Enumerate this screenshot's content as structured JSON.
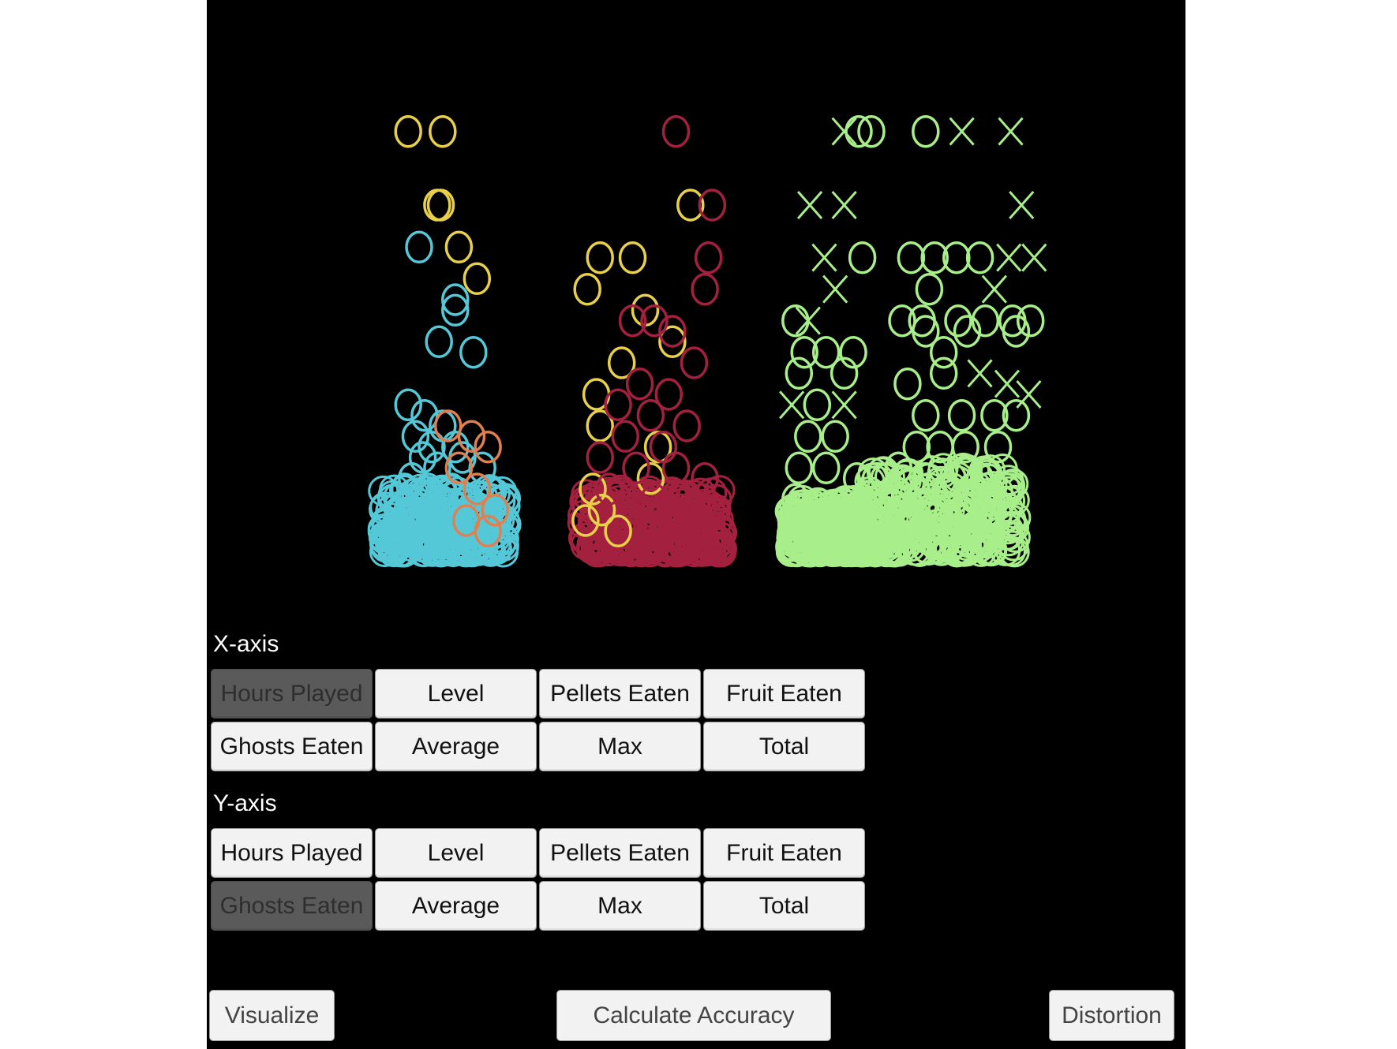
{
  "x_axis": {
    "label": "X-axis",
    "buttons": [
      "Hours Played",
      "Level",
      "Pellets Eaten",
      "Fruit Eaten",
      "Ghosts Eaten",
      "Average",
      "Max",
      "Total"
    ],
    "selected": "Hours Played"
  },
  "y_axis": {
    "label": "Y-axis",
    "buttons": [
      "Hours Played",
      "Level",
      "Pellets Eaten",
      "Fruit Eaten",
      "Ghosts Eaten",
      "Average",
      "Max",
      "Total"
    ],
    "selected": "Ghosts Eaten"
  },
  "actions": {
    "visualize": "Visualize",
    "calculate_accuracy": "Calculate Accuracy",
    "distortion": "Distortion"
  },
  "colors": {
    "background": "#000000",
    "cyan": "#55c8d8",
    "orange": "#e08050",
    "yellow": "#e8d04a",
    "crimson": "#a3213f",
    "lightgreen": "#a8ee8a"
  },
  "chart_data": {
    "type": "scatter",
    "title": "",
    "xlabel": "",
    "ylabel": "",
    "markers": [
      "circle",
      "x"
    ],
    "clusters": [
      {
        "color": "cyan",
        "points": [
          [
            0.2,
            29,
            "o"
          ],
          [
            0.4,
            24,
            "o"
          ],
          [
            0.4,
            23,
            "o"
          ],
          [
            0.31,
            20,
            "o"
          ],
          [
            0.5,
            19,
            "o"
          ],
          [
            0.14,
            14,
            "o"
          ],
          [
            0.23,
            13,
            "o"
          ],
          [
            0.33,
            12,
            "o"
          ],
          [
            0.18,
            11,
            "o"
          ],
          [
            0.27,
            10,
            "o"
          ],
          [
            0.4,
            10,
            "o"
          ],
          [
            0.22,
            9,
            "o"
          ],
          [
            0.44,
            9,
            "o"
          ],
          [
            0.3,
            8,
            "o"
          ],
          [
            0.16,
            7,
            "o"
          ],
          [
            0.55,
            8,
            "o"
          ],
          [
            0.12,
            6,
            "o"
          ],
          [
            0.25,
            6,
            "o"
          ],
          [
            0.38,
            6,
            "o"
          ],
          [
            0.48,
            5,
            "o"
          ],
          [
            0.6,
            5,
            "o"
          ],
          [
            0.2,
            0,
            "x"
          ]
        ]
      },
      {
        "color": "orange",
        "points": [
          [
            0.36,
            12,
            "o"
          ],
          [
            0.49,
            11,
            "o"
          ],
          [
            0.58,
            10,
            "o"
          ],
          [
            0.42,
            8,
            "o"
          ],
          [
            0.52,
            6,
            "o"
          ],
          [
            0.62,
            4,
            "o"
          ],
          [
            0.46,
            3,
            "o"
          ],
          [
            0.58,
            2,
            "o"
          ]
        ]
      },
      {
        "color": "yellow",
        "points": [
          [
            0.14,
            40,
            "o"
          ],
          [
            0.33,
            40,
            "o"
          ],
          [
            0.3,
            33,
            "o"
          ],
          [
            0.32,
            33,
            "o"
          ],
          [
            0.42,
            29,
            "o"
          ],
          [
            0.52,
            26,
            "o"
          ],
          [
            1.7,
            33,
            "o"
          ],
          [
            1.2,
            28,
            "o"
          ],
          [
            1.38,
            28,
            "o"
          ],
          [
            1.13,
            25,
            "o"
          ],
          [
            1.45,
            23,
            "o"
          ],
          [
            1.6,
            20,
            "o"
          ],
          [
            1.32,
            18,
            "o"
          ],
          [
            1.18,
            15,
            "o"
          ],
          [
            1.2,
            12,
            "o"
          ],
          [
            1.52,
            10,
            "o"
          ],
          [
            1.48,
            7,
            "o"
          ],
          [
            1.16,
            6,
            "o"
          ],
          [
            1.21,
            4,
            "o"
          ],
          [
            1.12,
            3,
            "o"
          ],
          [
            1.3,
            2,
            "o"
          ]
        ]
      },
      {
        "color": "crimson",
        "points": [
          [
            1.62,
            40,
            "o"
          ],
          [
            1.82,
            33,
            "o"
          ],
          [
            1.8,
            28,
            "o"
          ],
          [
            1.78,
            25,
            "o"
          ],
          [
            1.38,
            22,
            "o"
          ],
          [
            1.5,
            22,
            "o"
          ],
          [
            1.6,
            21,
            "o"
          ],
          [
            1.72,
            18,
            "o"
          ],
          [
            1.42,
            16,
            "o"
          ],
          [
            1.58,
            15,
            "o"
          ],
          [
            1.3,
            14,
            "o"
          ],
          [
            1.48,
            13,
            "o"
          ],
          [
            1.68,
            12,
            "o"
          ],
          [
            1.34,
            11,
            "o"
          ],
          [
            1.55,
            10,
            "o"
          ],
          [
            1.2,
            9,
            "o"
          ],
          [
            1.4,
            8,
            "o"
          ],
          [
            1.62,
            8,
            "o"
          ],
          [
            1.78,
            7,
            "o"
          ],
          [
            1.25,
            6,
            "o"
          ],
          [
            1.5,
            5,
            "o"
          ],
          [
            1.7,
            4,
            "o"
          ]
        ]
      },
      {
        "color": "lightgreen",
        "points": [
          [
            2.55,
            40,
            "x"
          ],
          [
            2.63,
            40,
            "o"
          ],
          [
            2.7,
            40,
            "o"
          ],
          [
            3.0,
            40,
            "o"
          ],
          [
            3.2,
            40,
            "x"
          ],
          [
            3.47,
            40,
            "x"
          ],
          [
            2.36,
            33,
            "x"
          ],
          [
            2.55,
            33,
            "x"
          ],
          [
            3.53,
            33,
            "x"
          ],
          [
            2.44,
            28,
            "x"
          ],
          [
            2.65,
            28,
            "o"
          ],
          [
            2.92,
            28,
            "o"
          ],
          [
            3.05,
            28,
            "o"
          ],
          [
            3.17,
            28,
            "o"
          ],
          [
            3.3,
            28,
            "o"
          ],
          [
            3.46,
            28,
            "x"
          ],
          [
            3.6,
            28,
            "x"
          ],
          [
            2.5,
            25,
            "x"
          ],
          [
            3.02,
            25,
            "o"
          ],
          [
            3.38,
            25,
            "x"
          ],
          [
            2.28,
            22,
            "o"
          ],
          [
            2.35,
            22,
            "x"
          ],
          [
            2.87,
            22,
            "o"
          ],
          [
            2.98,
            22,
            "o"
          ],
          [
            3.18,
            22,
            "o"
          ],
          [
            3.33,
            22,
            "o"
          ],
          [
            3.48,
            22,
            "o"
          ],
          [
            3.58,
            22,
            "o"
          ],
          [
            3.0,
            21,
            "o"
          ],
          [
            3.23,
            21,
            "o"
          ],
          [
            3.5,
            21,
            "o"
          ],
          [
            2.33,
            19,
            "o"
          ],
          [
            2.45,
            19,
            "o"
          ],
          [
            2.6,
            19,
            "o"
          ],
          [
            3.1,
            19,
            "o"
          ],
          [
            2.3,
            17,
            "o"
          ],
          [
            2.55,
            17,
            "o"
          ],
          [
            2.9,
            16,
            "o"
          ],
          [
            3.1,
            17,
            "o"
          ],
          [
            3.3,
            17,
            "x"
          ],
          [
            3.45,
            16,
            "x"
          ],
          [
            3.57,
            15,
            "x"
          ],
          [
            2.26,
            14,
            "x"
          ],
          [
            2.4,
            14,
            "o"
          ],
          [
            2.55,
            14,
            "x"
          ],
          [
            3.0,
            13,
            "o"
          ],
          [
            3.2,
            13,
            "o"
          ],
          [
            3.38,
            13,
            "o"
          ],
          [
            3.5,
            13,
            "o"
          ],
          [
            2.35,
            11,
            "o"
          ],
          [
            2.5,
            11,
            "o"
          ],
          [
            2.95,
            10,
            "o"
          ],
          [
            3.08,
            10,
            "o"
          ],
          [
            3.22,
            10,
            "o"
          ],
          [
            3.4,
            10,
            "o"
          ],
          [
            2.3,
            8,
            "o"
          ],
          [
            2.45,
            8,
            "o"
          ],
          [
            2.62,
            7,
            "o"
          ],
          [
            2.85,
            8,
            "o"
          ],
          [
            3.0,
            7,
            "o"
          ],
          [
            3.15,
            7,
            "o"
          ],
          [
            3.3,
            7,
            "o"
          ],
          [
            3.45,
            6,
            "o"
          ],
          [
            2.28,
            5,
            "o"
          ],
          [
            2.42,
            4,
            "o"
          ],
          [
            2.58,
            4,
            "o"
          ],
          [
            2.75,
            5,
            "o"
          ],
          [
            2.9,
            4,
            "o"
          ],
          [
            3.05,
            4,
            "o"
          ],
          [
            3.2,
            3,
            "o"
          ],
          [
            3.35,
            4,
            "o"
          ],
          [
            3.48,
            3,
            "o"
          ]
        ]
      }
    ],
    "dense_regions": [
      {
        "color": "cyan",
        "x_range": [
          0.0,
          0.7
        ],
        "y_range": [
          0,
          6
        ]
      },
      {
        "color": "crimson",
        "x_range": [
          1.1,
          1.88
        ],
        "y_range": [
          0,
          6
        ]
      },
      {
        "color": "lightgreen",
        "x_range": [
          2.25,
          2.68
        ],
        "y_range": [
          0,
          5
        ]
      },
      {
        "color": "lightgreen",
        "x_range": [
          2.68,
          3.5
        ],
        "y_range": [
          0,
          8
        ]
      }
    ],
    "xlim": [
      -0.45,
      4.0
    ],
    "ylim": [
      -3,
      48
    ],
    "grid": false,
    "legend": "none"
  }
}
